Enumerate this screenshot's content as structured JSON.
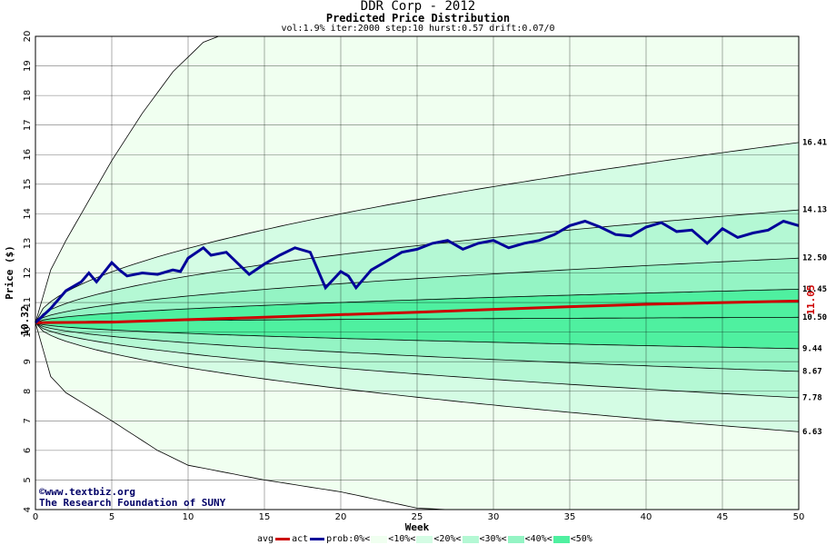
{
  "header": {
    "title": "DDR Corp - 2012",
    "subtitle": "Predicted Price Distribution",
    "params": "vol:1.9% iter:2000 step:10 hurst:0.57 drift:0.07/0"
  },
  "credit": {
    "line1": "©www.textbiz.org",
    "line2": "The Research Foundation of SUNY"
  },
  "legend": {
    "avg": "avg",
    "act": "act",
    "prob0": "prob:0%<",
    "p10": "<10%<",
    "p20": "<20%<",
    "p30": "<30%<",
    "p40": "<40%<",
    "p50": "<50%"
  },
  "chart_data": {
    "type": "area",
    "xlabel": "Week",
    "ylabel": "Price ($)",
    "xlim": [
      0,
      50
    ],
    "ylim": [
      4,
      20
    ],
    "xticks": [
      0,
      5,
      10,
      15,
      20,
      25,
      30,
      35,
      40,
      45,
      50
    ],
    "yticks": [
      4,
      5,
      6,
      7,
      8,
      9,
      10,
      11,
      12,
      13,
      14,
      15,
      16,
      17,
      18,
      19,
      20
    ],
    "grid": true,
    "start_price_label": "10.32",
    "end_avg_label": "11.05",
    "colors": {
      "avg": "#cc0000",
      "act": "#000099",
      "bands": [
        "#f0fff0",
        "#d4fce4",
        "#b4f8d4",
        "#94f4c4",
        "#74f0b4",
        "#4ff0a0"
      ]
    },
    "percentile_end_labels": [
      "16.41",
      "14.13",
      "12.50",
      "11.45",
      "10.50",
      "9.44",
      "8.67",
      "7.78",
      "6.63"
    ],
    "percentile_end_values": [
      16.41,
      14.13,
      12.5,
      11.45,
      10.5,
      9.44,
      8.67,
      7.78,
      6.63
    ],
    "outer_envelope": {
      "upper": [
        [
          0,
          10.32
        ],
        [
          1,
          12.1
        ],
        [
          2,
          13.1
        ],
        [
          3,
          14.0
        ],
        [
          5,
          15.8
        ],
        [
          7,
          17.4
        ],
        [
          9,
          18.8
        ],
        [
          11,
          19.8
        ],
        [
          12,
          20.0
        ]
      ],
      "lower": [
        [
          0,
          10.32
        ],
        [
          1,
          8.5
        ],
        [
          2,
          7.95
        ],
        [
          5,
          7.0
        ],
        [
          8,
          6.0
        ],
        [
          10,
          5.5
        ],
        [
          15,
          5.0
        ],
        [
          20,
          4.6
        ],
        [
          25,
          4.05
        ],
        [
          27,
          4.0
        ]
      ]
    },
    "avg": [
      [
        0,
        10.32
      ],
      [
        5,
        10.34
      ],
      [
        10,
        10.42
      ],
      [
        15,
        10.5
      ],
      [
        20,
        10.59
      ],
      [
        25,
        10.67
      ],
      [
        30,
        10.77
      ],
      [
        35,
        10.86
      ],
      [
        40,
        10.94
      ],
      [
        45,
        11.0
      ],
      [
        50,
        11.05
      ]
    ],
    "act": [
      [
        0,
        10.32
      ],
      [
        1,
        10.8
      ],
      [
        2,
        11.4
      ],
      [
        3,
        11.7
      ],
      [
        3.5,
        12.0
      ],
      [
        4,
        11.7
      ],
      [
        5,
        12.35
      ],
      [
        5.5,
        12.1
      ],
      [
        6,
        11.9
      ],
      [
        7,
        12.0
      ],
      [
        8,
        11.95
      ],
      [
        9,
        12.1
      ],
      [
        9.5,
        12.05
      ],
      [
        10,
        12.5
      ],
      [
        11,
        12.85
      ],
      [
        11.5,
        12.6
      ],
      [
        12.5,
        12.7
      ],
      [
        13,
        12.45
      ],
      [
        14,
        11.95
      ],
      [
        15,
        12.3
      ],
      [
        16,
        12.6
      ],
      [
        17,
        12.85
      ],
      [
        18,
        12.7
      ],
      [
        19,
        11.5
      ],
      [
        20,
        12.05
      ],
      [
        20.5,
        11.9
      ],
      [
        21,
        11.5
      ],
      [
        22,
        12.1
      ],
      [
        23,
        12.4
      ],
      [
        24,
        12.7
      ],
      [
        25,
        12.8
      ],
      [
        26,
        13.0
      ],
      [
        27,
        13.1
      ],
      [
        28,
        12.8
      ],
      [
        29,
        13.0
      ],
      [
        30,
        13.1
      ],
      [
        31,
        12.85
      ],
      [
        32,
        13.0
      ],
      [
        33,
        13.1
      ],
      [
        34,
        13.3
      ],
      [
        35,
        13.6
      ],
      [
        36,
        13.75
      ],
      [
        37,
        13.55
      ],
      [
        38,
        13.3
      ],
      [
        39,
        13.25
      ],
      [
        40,
        13.55
      ],
      [
        41,
        13.7
      ],
      [
        42,
        13.4
      ],
      [
        43,
        13.45
      ],
      [
        44,
        13.0
      ],
      [
        45,
        13.5
      ],
      [
        46,
        13.2
      ],
      [
        47,
        13.35
      ],
      [
        48,
        13.45
      ],
      [
        49,
        13.75
      ],
      [
        50,
        13.6
      ]
    ]
  }
}
